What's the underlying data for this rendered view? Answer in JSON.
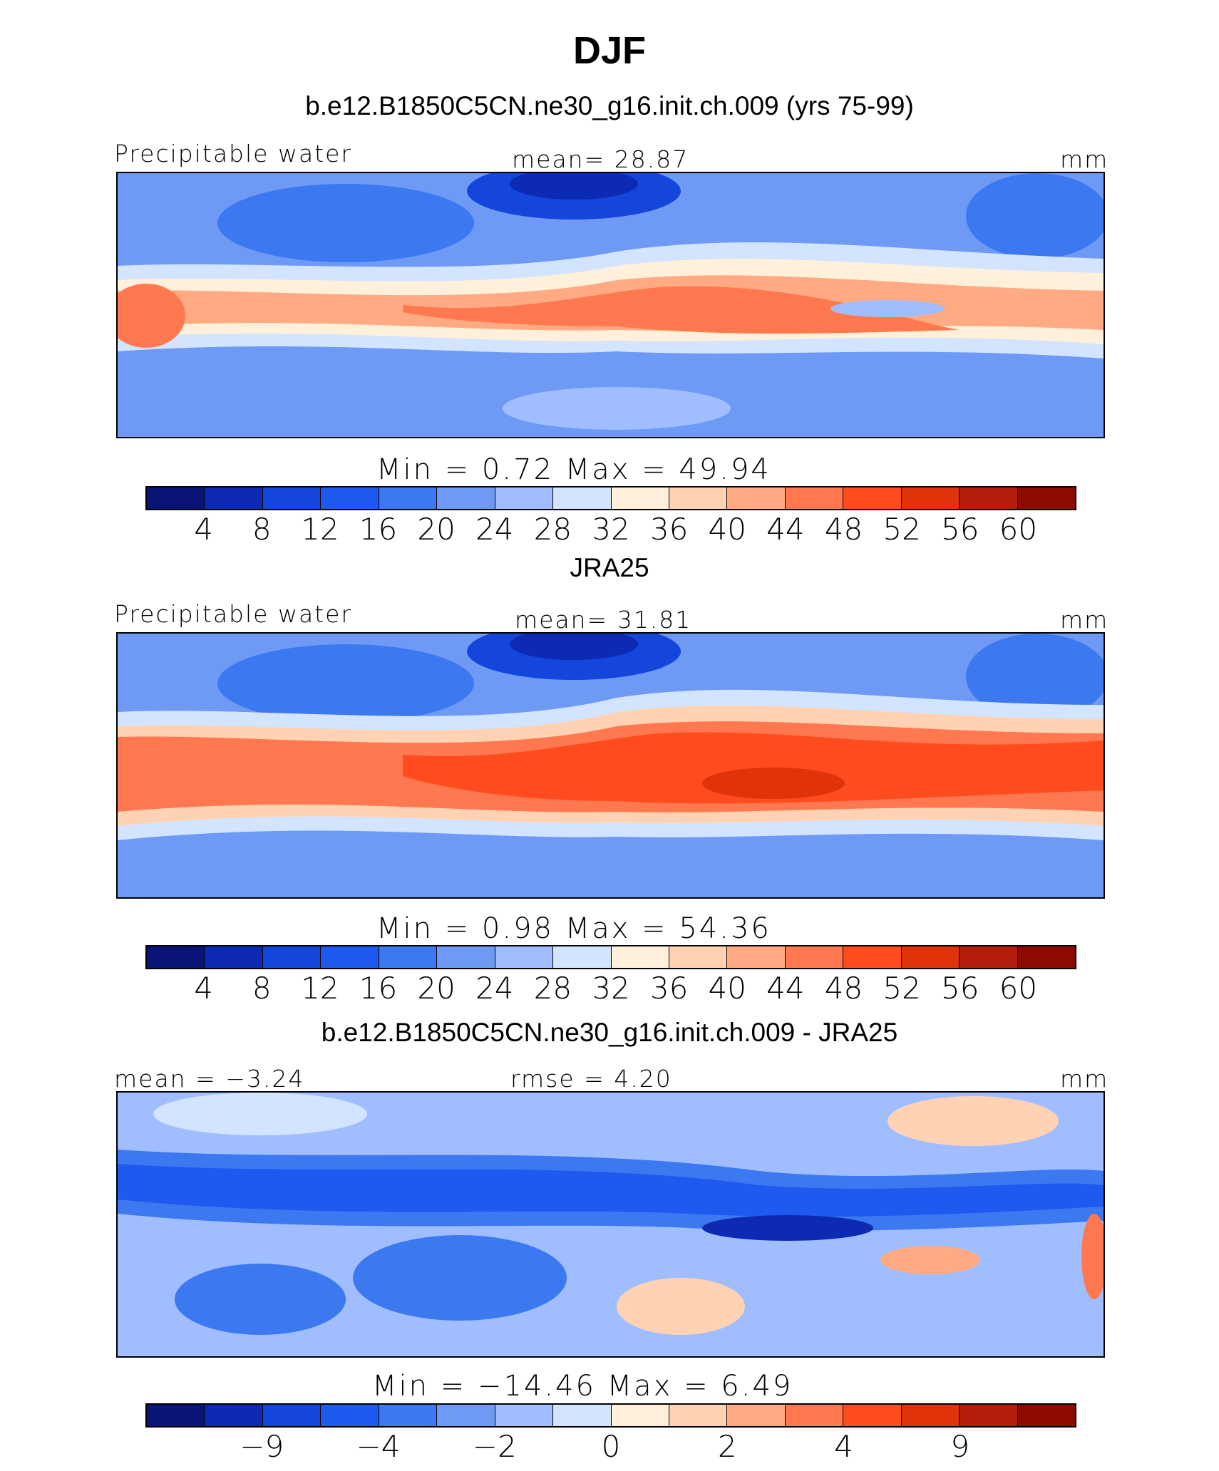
{
  "page_title": "DJF",
  "colors": [
    "#0a1478",
    "#0c2ab4",
    "#1446dc",
    "#1e5af0",
    "#3c78f0",
    "#6e9af5",
    "#a0beff",
    "#d2e4ff",
    "#fff0dc",
    "#ffd2b4",
    "#ffaa82",
    "#ff7850",
    "#ff4b1e",
    "#e1320a",
    "#b41e0a",
    "#8c0a00"
  ],
  "chart_data": [
    {
      "type": "heatmap",
      "subtitle": "b.e12.B1850C5CN.ne30_g16.init.ch.009 (yrs 75-99)",
      "left_label": "Precipitable water",
      "center_label": "mean=   28.87",
      "unit": "mm",
      "mean": 28.87,
      "min": 0.72,
      "max": 49.94,
      "stats_text": "Min  =     0.72  Max  =    49.94",
      "levels": [
        "4",
        "8",
        "12",
        "16",
        "20",
        "24",
        "28",
        "32",
        "36",
        "40",
        "44",
        "48",
        "52",
        "56",
        "60"
      ]
    },
    {
      "type": "heatmap",
      "subtitle": "JRA25",
      "left_label": "Precipitable water",
      "center_label": "mean=   31.81",
      "unit": "mm",
      "mean": 31.81,
      "min": 0.98,
      "max": 54.36,
      "stats_text": "Min  =     0.98  Max  =    54.36",
      "levels": [
        "4",
        "8",
        "12",
        "16",
        "20",
        "24",
        "28",
        "32",
        "36",
        "40",
        "44",
        "48",
        "52",
        "56",
        "60"
      ]
    },
    {
      "type": "heatmap",
      "subtitle": "b.e12.B1850C5CN.ne30_g16.init.ch.009 - JRA25",
      "left_label": "mean  =   −3.24",
      "center_label": "rmse  =     4.20",
      "unit": "mm",
      "mean": -3.24,
      "rmse": 4.2,
      "min": -14.46,
      "max": 6.49,
      "stats_text": "Min  =  −14.46  Max  =     6.49",
      "levels": [
        "−9",
        "−4",
        "−2",
        "0",
        "2",
        "4",
        "9"
      ],
      "level_positions": [
        2,
        4,
        6,
        8,
        10,
        12,
        14
      ]
    }
  ]
}
